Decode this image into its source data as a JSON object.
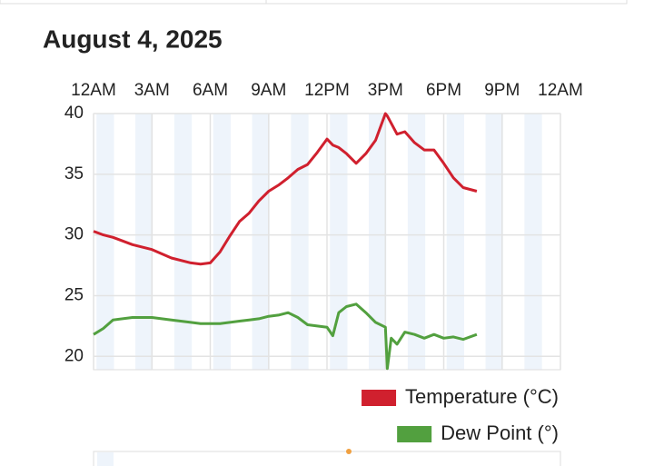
{
  "chart_data": {
    "type": "line",
    "title": "August 4, 2025",
    "x": [
      0,
      0.5,
      1,
      2,
      3,
      4,
      5,
      5.5,
      6,
      6.5,
      7,
      7.5,
      8,
      8.5,
      9,
      9.5,
      10,
      10.5,
      11,
      11.5,
      12,
      12.3,
      12.6,
      13,
      13.5,
      14,
      14.5,
      15,
      15.1,
      15.3,
      15.6,
      16,
      16.5,
      17,
      17.5,
      18,
      18.5,
      19,
      19.7
    ],
    "series": [
      {
        "name": "Temperature (°C)",
        "color": "#d0202e",
        "values": [
          30.3,
          30.0,
          29.8,
          29.2,
          28.8,
          28.1,
          27.7,
          27.6,
          27.7,
          28.6,
          29.9,
          31.1,
          31.8,
          32.8,
          33.6,
          34.1,
          34.7,
          35.4,
          35.8,
          36.8,
          37.9,
          37.4,
          37.2,
          36.7,
          35.9,
          36.7,
          37.8,
          40.0,
          39.8,
          39.2,
          38.3,
          38.5,
          37.6,
          37.0,
          37.0,
          35.9,
          34.7,
          33.9,
          33.6
        ]
      },
      {
        "name": "Dew Point (°)",
        "color": "#52a03f",
        "values": [
          21.8,
          22.3,
          23.0,
          23.2,
          23.2,
          23.0,
          22.8,
          22.7,
          22.7,
          22.7,
          22.8,
          22.9,
          23.0,
          23.1,
          23.3,
          23.4,
          23.6,
          23.2,
          22.6,
          22.5,
          22.4,
          21.7,
          23.6,
          24.1,
          24.3,
          23.6,
          22.8,
          22.4,
          19.0,
          21.5,
          21.0,
          22.0,
          21.8,
          21.5,
          21.8,
          21.5,
          21.6,
          21.4,
          21.8
        ]
      }
    ],
    "xlim": [
      0,
      24
    ],
    "xticks": [
      {
        "value": 0,
        "label": "12AM"
      },
      {
        "value": 3,
        "label": "3AM"
      },
      {
        "value": 6,
        "label": "6AM"
      },
      {
        "value": 9,
        "label": "9AM"
      },
      {
        "value": 12,
        "label": "12PM"
      },
      {
        "value": 15,
        "label": "3PM"
      },
      {
        "value": 18,
        "label": "6PM"
      },
      {
        "value": 21,
        "label": "9PM"
      },
      {
        "value": 24,
        "label": "12AM"
      }
    ],
    "ylim": [
      18.9,
      40
    ],
    "yticks": [
      20,
      25,
      30,
      35,
      40
    ],
    "grid": true
  }
}
